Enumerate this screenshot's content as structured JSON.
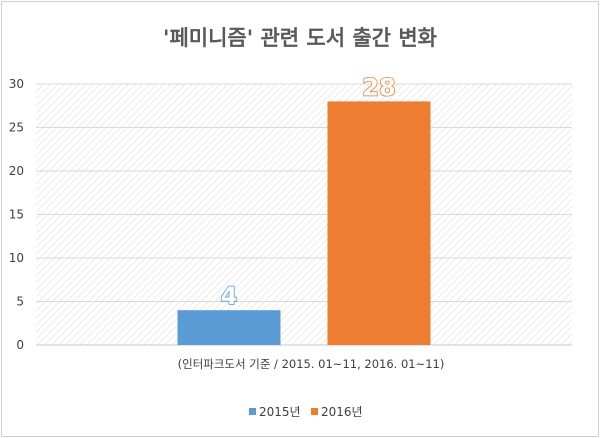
{
  "chart_data": {
    "type": "bar",
    "title": "'페미니즘' 관련 도서 출간 변화",
    "xlabel": "(인터파크도서 기준 / 2015. 01~11, 2016. 01~11)",
    "ylabel": "",
    "ylim": [
      0,
      30
    ],
    "yticks": [
      "0",
      "5",
      "10",
      "15",
      "20",
      "25",
      "30"
    ],
    "grid": true,
    "legend_position": "bottom",
    "series": [
      {
        "name": "2015년",
        "color": "#5b9bd5",
        "value": 4,
        "label": "4"
      },
      {
        "name": "2016년",
        "color": "#ed7d31",
        "value": 28,
        "label": "28"
      }
    ]
  }
}
